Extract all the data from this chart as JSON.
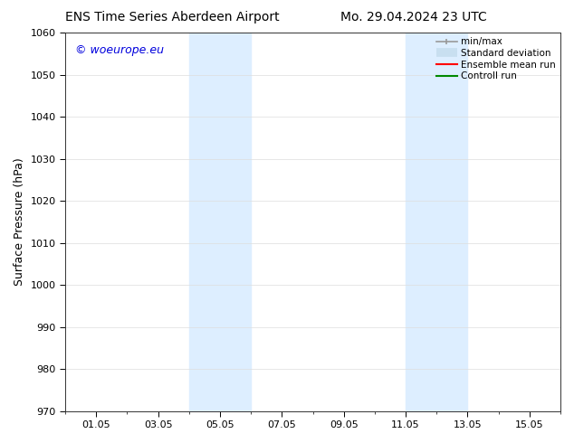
{
  "title_left": "ENS Time Series Aberdeen Airport",
  "title_right": "Mo. 29.04.2024 23 UTC",
  "ylabel": "Surface Pressure (hPa)",
  "ylim": [
    970,
    1060
  ],
  "yticks": [
    970,
    980,
    990,
    1000,
    1010,
    1020,
    1030,
    1040,
    1050,
    1060
  ],
  "xtick_labels": [
    "01.05",
    "03.05",
    "05.05",
    "07.05",
    "09.05",
    "11.05",
    "13.05",
    "15.05"
  ],
  "xtick_positions": [
    1,
    3,
    5,
    7,
    9,
    11,
    13,
    15
  ],
  "xlim": [
    0.0,
    16.0
  ],
  "shaded_bands": [
    {
      "x_start": 4.0,
      "x_end": 6.0,
      "color": "#ddeeff"
    },
    {
      "x_start": 11.0,
      "x_end": 13.0,
      "color": "#ddeeff"
    }
  ],
  "watermark_text": "© woeurope.eu",
  "watermark_color": "#0000dd",
  "legend_labels": [
    "min/max",
    "Standard deviation",
    "Ensemble mean run",
    "Controll run"
  ],
  "legend_colors_line": [
    "#999999",
    "#c8dff0",
    "#ff0000",
    "#008800"
  ],
  "bg_color": "#ffffff",
  "plot_bg_color": "#ffffff",
  "grid_color": "#dddddd",
  "title_fontsize": 10,
  "axis_label_fontsize": 9,
  "tick_fontsize": 8,
  "watermark_fontsize": 9,
  "legend_fontsize": 7.5
}
